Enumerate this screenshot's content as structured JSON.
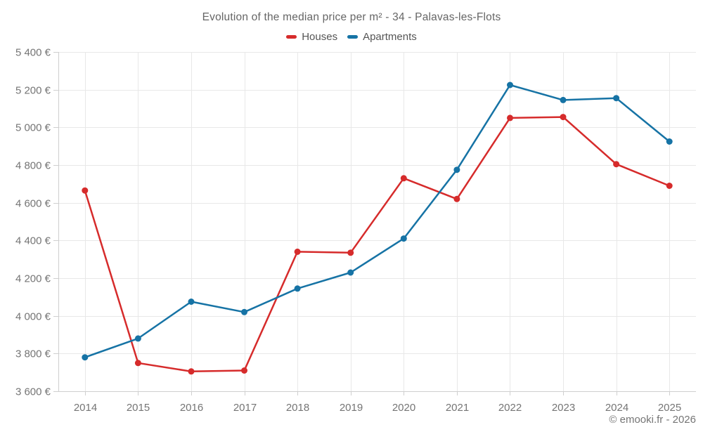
{
  "title": "Evolution of the median price per m² - 34 - Palavas-les-Flots",
  "legend": {
    "houses_label": "Houses",
    "apartments_label": "Apartments"
  },
  "footer": {
    "credit": "© emooki.fr - 2026"
  },
  "colors": {
    "houses": "#d62b2b",
    "apartments": "#1673a5",
    "gridline": "#e8e8e8",
    "axis": "#cfcfcf",
    "tick": "#cfcfcf",
    "axis_label": "#757575"
  },
  "chart_data": {
    "type": "line",
    "title": "Evolution of the median price per m² - 34 - Palavas-les-Flots",
    "categories": [
      "2014",
      "2015",
      "2016",
      "2017",
      "2018",
      "2019",
      "2020",
      "2021",
      "2022",
      "2023",
      "2024",
      "2025"
    ],
    "series": [
      {
        "name": "Houses",
        "color": "#d62b2b",
        "values": [
          4665,
          3750,
          3705,
          3710,
          4340,
          4335,
          4730,
          4620,
          5050,
          5055,
          4805,
          4690
        ]
      },
      {
        "name": "Apartments",
        "color": "#1673a5",
        "values": [
          3780,
          3880,
          4075,
          4020,
          4145,
          4230,
          4410,
          4775,
          5225,
          5145,
          5155,
          4925
        ]
      }
    ],
    "xlabel": "",
    "ylabel": "",
    "ylim": [
      3600,
      5400
    ],
    "ytick_step": 200,
    "ytick_suffix": " €",
    "grid": true,
    "legend_position": "top"
  }
}
